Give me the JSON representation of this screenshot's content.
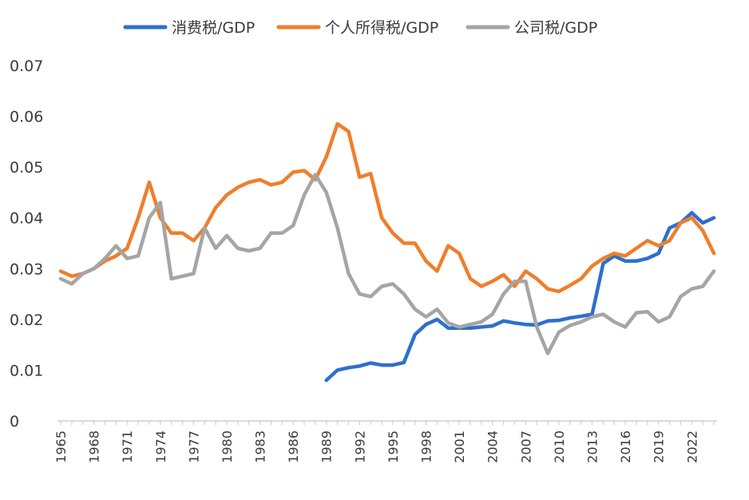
{
  "chart_data": {
    "type": "line",
    "title": "",
    "xlabel": "",
    "ylabel": "",
    "ylim": [
      0,
      0.07
    ],
    "yticks": [
      "0",
      "0.01",
      "0.02",
      "0.03",
      "0.04",
      "0.05",
      "0.06",
      "0.07"
    ],
    "xlim": [
      1965,
      2024
    ],
    "xticks": [
      "1965",
      "1968",
      "1971",
      "1974",
      "1977",
      "1980",
      "1983",
      "1986",
      "1989",
      "1992",
      "1995",
      "1998",
      "2001",
      "2004",
      "2007",
      "2010",
      "2013",
      "2016",
      "2019",
      "2022"
    ],
    "grid": false,
    "legend": "top-center",
    "x": [
      1965,
      1966,
      1967,
      1968,
      1969,
      1970,
      1971,
      1972,
      1973,
      1974,
      1975,
      1976,
      1977,
      1978,
      1979,
      1980,
      1981,
      1982,
      1983,
      1984,
      1985,
      1986,
      1987,
      1988,
      1989,
      1990,
      1991,
      1992,
      1993,
      1994,
      1995,
      1996,
      1997,
      1998,
      1999,
      2000,
      2001,
      2002,
      2003,
      2004,
      2005,
      2006,
      2007,
      2008,
      2009,
      2010,
      2011,
      2012,
      2013,
      2014,
      2015,
      2016,
      2017,
      2018,
      2019,
      2020,
      2021,
      2022,
      2023,
      2024
    ],
    "series": [
      {
        "name": "消费税/GDP",
        "color": "#2e6fcb",
        "values": [
          null,
          null,
          null,
          null,
          null,
          null,
          null,
          null,
          null,
          null,
          null,
          null,
          null,
          null,
          null,
          null,
          null,
          null,
          null,
          null,
          null,
          null,
          null,
          null,
          0.008,
          0.01,
          0.0105,
          0.0108,
          0.0114,
          0.011,
          0.011,
          0.0115,
          0.017,
          0.019,
          0.02,
          0.0183,
          0.0183,
          0.0183,
          0.0185,
          0.0187,
          0.0197,
          0.0193,
          0.019,
          0.0189,
          0.0197,
          0.0198,
          0.0203,
          0.0206,
          0.021,
          0.031,
          0.0325,
          0.0315,
          0.0315,
          0.032,
          0.033,
          0.038,
          0.039,
          0.041,
          0.039,
          0.04
        ]
      },
      {
        "name": "个人所得税/GDP",
        "color": "#ee7f2c",
        "values": [
          0.0295,
          0.0285,
          0.029,
          0.03,
          0.0315,
          0.0325,
          0.034,
          0.04,
          0.047,
          0.04,
          0.037,
          0.037,
          0.0355,
          0.038,
          0.042,
          0.0445,
          0.046,
          0.047,
          0.0475,
          0.0465,
          0.047,
          0.049,
          0.0493,
          0.0475,
          0.052,
          0.0585,
          0.057,
          0.048,
          0.0487,
          0.04,
          0.037,
          0.035,
          0.035,
          0.0315,
          0.0295,
          0.0345,
          0.033,
          0.028,
          0.0265,
          0.0275,
          0.0288,
          0.0265,
          0.0295,
          0.028,
          0.026,
          0.0255,
          0.0267,
          0.028,
          0.0305,
          0.032,
          0.033,
          0.0325,
          0.034,
          0.0355,
          0.0345,
          0.0355,
          0.039,
          0.04,
          0.0375,
          0.033
        ]
      },
      {
        "name": "公司税/GDP",
        "color": "#a5a5a5",
        "values": [
          0.028,
          0.027,
          0.029,
          0.03,
          0.032,
          0.0345,
          0.032,
          0.0325,
          0.04,
          0.043,
          0.028,
          0.0285,
          0.029,
          0.038,
          0.034,
          0.0365,
          0.034,
          0.0335,
          0.034,
          0.037,
          0.037,
          0.0385,
          0.0445,
          0.0485,
          0.045,
          0.038,
          0.029,
          0.025,
          0.0245,
          0.0265,
          0.027,
          0.025,
          0.022,
          0.0205,
          0.022,
          0.0193,
          0.0185,
          0.019,
          0.0195,
          0.021,
          0.025,
          0.0275,
          0.0275,
          0.0185,
          0.0133,
          0.0175,
          0.0188,
          0.0195,
          0.0205,
          0.021,
          0.0195,
          0.0185,
          0.0213,
          0.0215,
          0.0195,
          0.0205,
          0.0245,
          0.026,
          0.0265,
          0.0295
        ]
      }
    ]
  }
}
